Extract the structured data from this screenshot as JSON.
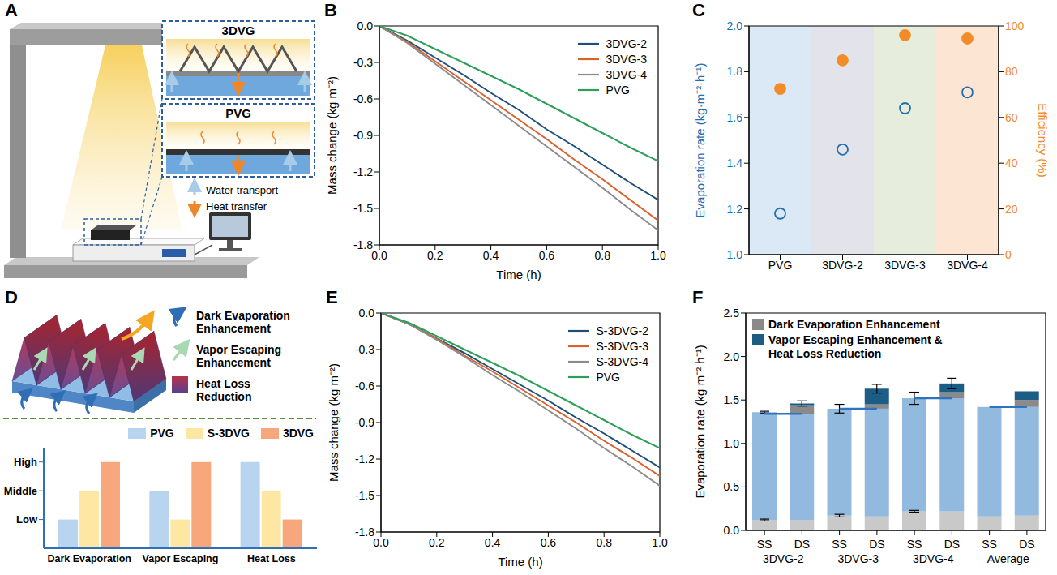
{
  "panel_letters": [
    "A",
    "B",
    "C",
    "D",
    "E",
    "F"
  ],
  "diagrams": {
    "A": {
      "insets": [
        "3DVG",
        "PVG"
      ],
      "legend": [
        {
          "label": "Water transport",
          "color": "#a8cbe8"
        },
        {
          "label": "Heat transfer",
          "color": "#f0862a"
        }
      ]
    },
    "D": {
      "legend": [
        {
          "label": "Dark Evaporation Enhancement",
          "color": "#2f6db5"
        },
        {
          "label": "Vapor Escaping Enhancement",
          "color": "#a9d8b2"
        },
        {
          "label": "Heat Loss Reduction",
          "color": "#b8324a"
        }
      ]
    }
  },
  "chart_data": [
    {
      "type": "line",
      "x": [
        0,
        0.1,
        0.2,
        0.3,
        0.4,
        0.5,
        0.6,
        0.7,
        0.8,
        0.9,
        1
      ],
      "xlim": [
        0,
        1
      ],
      "xticks": [
        {
          "value": 0,
          "label": "0.0"
        },
        0.2,
        0.4,
        0.6,
        0.8,
        {
          "value": 1,
          "label": "1.0"
        }
      ],
      "ylim": [
        -1.8,
        0
      ],
      "yticks": [
        -1.8,
        -1.5,
        -1.2,
        -0.9,
        -0.6,
        -0.3,
        {
          "value": 0,
          "label": "0.0"
        }
      ],
      "xlabel": "Time (h)",
      "ylabel": "Mass change (kg m⁻²)",
      "legend": "upper right",
      "series": [
        {
          "name": "3DVG-2",
          "color": "#1f4e79",
          "values": [
            0,
            -0.12,
            -0.26,
            -0.4,
            -0.55,
            -0.69,
            -0.85,
            -0.99,
            -1.14,
            -1.29,
            -1.43
          ]
        },
        {
          "name": "3DVG-3",
          "color": "#d9622b",
          "values": [
            0,
            -0.13,
            -0.29,
            -0.45,
            -0.61,
            -0.77,
            -0.93,
            -1.1,
            -1.26,
            -1.43,
            -1.6
          ]
        },
        {
          "name": "3DVG-4",
          "color": "#8c8c8c",
          "values": [
            0,
            -0.14,
            -0.31,
            -0.48,
            -0.65,
            -0.82,
            -0.99,
            -1.16,
            -1.33,
            -1.51,
            -1.68
          ]
        },
        {
          "name": "PVG",
          "color": "#2e9e5b",
          "values": [
            0,
            -0.08,
            -0.19,
            -0.3,
            -0.41,
            -0.52,
            -0.64,
            -0.76,
            -0.88,
            -1,
            -1.11
          ]
        }
      ]
    },
    {
      "type": "scatter",
      "categories": [
        "PVG",
        "3DVG-2",
        "3DVG-3",
        "3DVG-4"
      ],
      "ylabel": "Evaporation rate (kg·m⁻²·h⁻¹)",
      "y2label": "Efficiency (%)",
      "ylim": [
        1,
        2
      ],
      "yticks": [
        {
          "value": 1,
          "label": "1.0"
        },
        1.2,
        1.4,
        1.6,
        1.8,
        {
          "value": 2,
          "label": "2.0"
        }
      ],
      "y2lim": [
        0,
        100
      ],
      "y2ticks": [
        0,
        20,
        40,
        60,
        80,
        100
      ],
      "series": [
        {
          "color": "#1f6eb0",
          "marker": "open circle",
          "values": [
            1.18,
            1.46,
            1.64,
            1.71
          ]
        },
        {
          "axis": "y2",
          "color": "#f28c28",
          "marker": "circle",
          "values": [
            72.5,
            85,
            96,
            94.5
          ]
        }
      ]
    },
    {
      "type": "bar",
      "categories": [
        "Dark Evaporation",
        "Vapor Escaping",
        "Heat Loss"
      ],
      "ylim": [
        0,
        3.5
      ],
      "yticks": [
        {
          "value": 1,
          "label": "Low"
        },
        {
          "value": 2,
          "label": "Middle"
        },
        {
          "value": 3,
          "label": "High"
        }
      ],
      "legend": "upper right",
      "series": [
        {
          "name": "PVG",
          "color": "#b8d4ef",
          "values": [
            1,
            2,
            3
          ]
        },
        {
          "name": "S-3DVG",
          "color": "#fde7a3",
          "values": [
            2,
            1,
            2
          ]
        },
        {
          "name": "3DVG",
          "color": "#f7a77b",
          "values": [
            3,
            3,
            1
          ]
        }
      ]
    },
    {
      "type": "line",
      "x": [
        0,
        0.1,
        0.2,
        0.3,
        0.4,
        0.5,
        0.6,
        0.7,
        0.8,
        0.9,
        1
      ],
      "xlim": [
        0,
        1
      ],
      "xticks": [
        {
          "value": 0,
          "label": "0.0"
        },
        0.2,
        0.4,
        0.6,
        0.8,
        {
          "value": 1,
          "label": "1.0"
        }
      ],
      "ylim": [
        -1.8,
        0
      ],
      "yticks": [
        -1.8,
        -1.5,
        -1.2,
        -0.9,
        -0.6,
        -0.3,
        {
          "value": 0,
          "label": "0.0"
        }
      ],
      "xlabel": "Time (h)",
      "ylabel": "Mass change (kg m⁻²)",
      "legend": "upper right",
      "series": [
        {
          "name": "S-3DVG-2",
          "color": "#1f4e79",
          "values": [
            0,
            -0.09,
            -0.21,
            -0.33,
            -0.46,
            -0.59,
            -0.72,
            -0.86,
            -0.99,
            -1.13,
            -1.27
          ]
        },
        {
          "name": "S-3DVG-3",
          "color": "#d9622b",
          "values": [
            0,
            -0.09,
            -0.21,
            -0.35,
            -0.48,
            -0.62,
            -0.76,
            -0.9,
            -1.05,
            -1.19,
            -1.34
          ]
        },
        {
          "name": "S-3DVG-4",
          "color": "#8c8c8c",
          "values": [
            0,
            -0.09,
            -0.22,
            -0.36,
            -0.51,
            -0.65,
            -0.8,
            -0.95,
            -1.11,
            -1.26,
            -1.42
          ]
        },
        {
          "name": "PVG",
          "color": "#2e9e5b",
          "values": [
            0,
            -0.08,
            -0.19,
            -0.3,
            -0.41,
            -0.52,
            -0.64,
            -0.76,
            -0.88,
            -1,
            -1.11
          ]
        }
      ]
    },
    {
      "type": "bar",
      "stacked": true,
      "categories": [
        "SS",
        "DS",
        "SS",
        "DS",
        "SS",
        "DS",
        "SS",
        "DS"
      ],
      "groups": [
        "3DVG-2",
        "3DVG-3",
        "3DVG-4",
        "Average"
      ],
      "ylabel": "Evaporation rate (kg m⁻² h⁻¹)",
      "ylim": [
        0,
        2.5
      ],
      "yticks": [
        {
          "value": 0,
          "label": "0.0"
        },
        0.5,
        {
          "value": 1,
          "label": "1.0"
        },
        1.5,
        {
          "value": 2,
          "label": "2.0"
        },
        2.5
      ],
      "legend": "upper left",
      "baselines": [
        1.34,
        1.4,
        1.52,
        1.42
      ],
      "series": [
        {
          "color": "#c9c9c9",
          "values": [
            0.12,
            0.12,
            0.17,
            0.16,
            0.22,
            0.22,
            0.16,
            0.17
          ],
          "errors": [
            0.01,
            null,
            0.015,
            null,
            0.01,
            null,
            null,
            null
          ]
        },
        {
          "color": "#92badf",
          "values": [
            1.24,
            1.22,
            1.23,
            1.24,
            1.3,
            1.3,
            1.26,
            1.25
          ],
          "errors": [
            0.01,
            null,
            0.05,
            null,
            0.07,
            null,
            null,
            null
          ]
        },
        {
          "name": "Dark Evaporation Enhancement",
          "color": "#8a8a8a",
          "values": [
            null,
            0.1,
            null,
            0.05,
            null,
            0.07,
            null,
            0.08
          ]
        },
        {
          "name": "Vapor Escaping Enhancement & Heat Loss Reduction",
          "color": "#1c5d86",
          "values": [
            null,
            0.02,
            null,
            0.18,
            null,
            0.1,
            null,
            0.1
          ],
          "errors": [
            null,
            0.03,
            null,
            0.05,
            null,
            0.06,
            null,
            null
          ]
        }
      ]
    }
  ]
}
